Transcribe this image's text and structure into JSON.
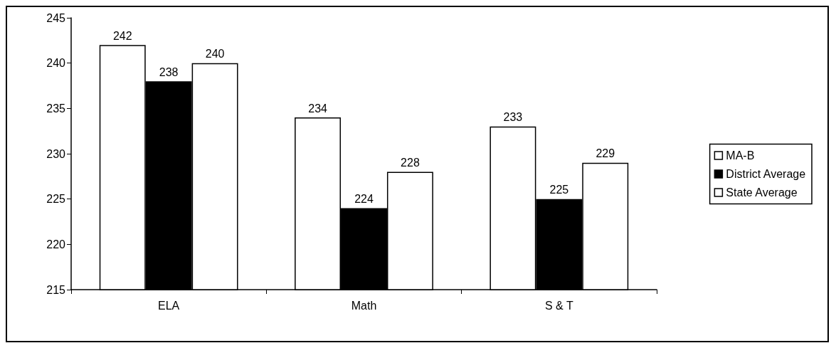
{
  "chart_data": {
    "type": "bar",
    "categories": [
      "ELA",
      "Math",
      "S & T"
    ],
    "series": [
      {
        "name": "MA-B",
        "color": "#ffffff",
        "values": [
          242,
          234,
          233
        ]
      },
      {
        "name": "District Average",
        "color": "#000000",
        "values": [
          238,
          224,
          225
        ]
      },
      {
        "name": "State Average",
        "color": "#ffffff",
        "values": [
          240,
          228,
          229
        ]
      }
    ],
    "ylim": [
      215,
      245
    ],
    "yticks": [
      215,
      220,
      225,
      230,
      235,
      240,
      245
    ],
    "grid": false,
    "legend": "right",
    "data_labels": true
  }
}
